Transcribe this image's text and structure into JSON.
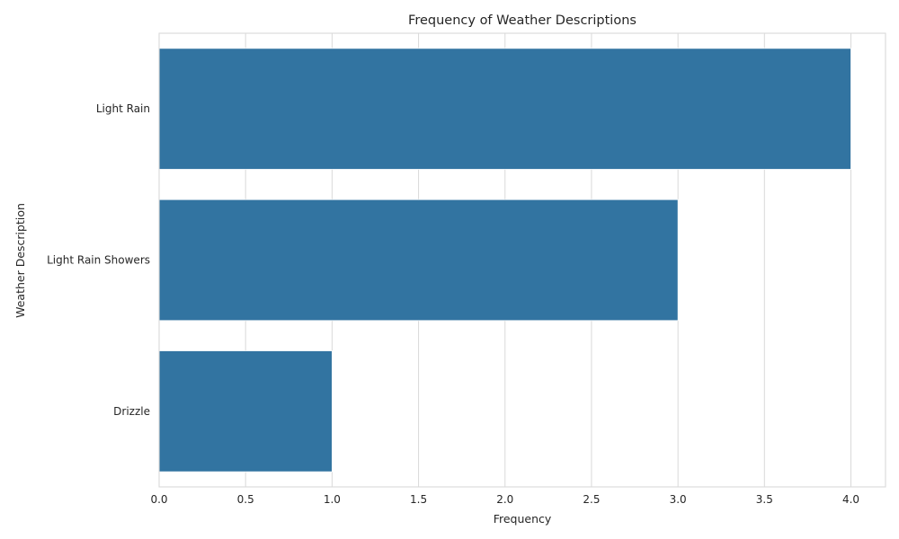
{
  "chart_data": {
    "type": "bar",
    "orientation": "horizontal",
    "title": "Frequency of Weather Descriptions",
    "xlabel": "Frequency",
    "ylabel": "Weather Description",
    "categories": [
      "Light Rain",
      "Light Rain Showers",
      "Drizzle"
    ],
    "values": [
      4,
      3,
      1
    ],
    "xlim": [
      0,
      4.2
    ],
    "xticks": [
      "0.0",
      "0.5",
      "1.0",
      "1.5",
      "2.0",
      "2.5",
      "3.0",
      "3.5",
      "4.0"
    ],
    "grid": true,
    "bar_color": "#3274a1"
  }
}
